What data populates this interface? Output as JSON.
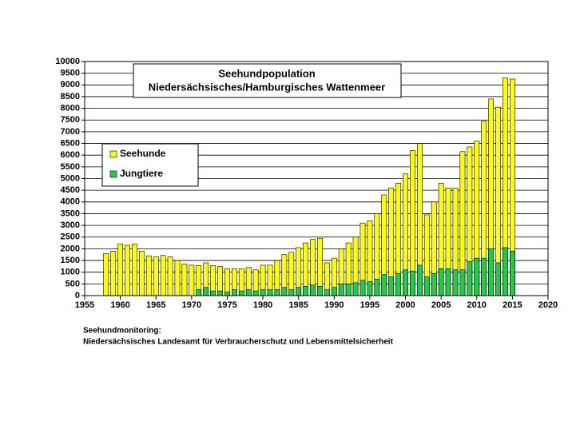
{
  "chart_data": {
    "type": "bar",
    "title": "Seehundpopulation",
    "subtitle": "Niedersächsisches/Hamburgisches Wattenmeer",
    "source": [
      "Seehundmonitoring:",
      "Niedersächsisches  Landesamt für Verbraucherschutz  und Lebensmittelsicherheit"
    ],
    "x": [
      1958,
      1959,
      1960,
      1961,
      1962,
      1963,
      1964,
      1965,
      1966,
      1967,
      1968,
      1969,
      1970,
      1971,
      1972,
      1973,
      1974,
      1975,
      1976,
      1977,
      1978,
      1979,
      1980,
      1981,
      1982,
      1983,
      1984,
      1985,
      1986,
      1987,
      1988,
      1989,
      1990,
      1991,
      1992,
      1993,
      1994,
      1995,
      1996,
      1997,
      1998,
      1999,
      2000,
      2001,
      2002,
      2003,
      2004,
      2005,
      2006,
      2007,
      2008,
      2009,
      2010,
      2011,
      2012,
      2013,
      2014,
      2015
    ],
    "series": [
      {
        "name": "Seehunde",
        "color": "#ffff00",
        "values": [
          1800,
          1900,
          2200,
          2150,
          2200,
          1900,
          1700,
          1650,
          1720,
          1650,
          1500,
          1350,
          1300,
          1280,
          1400,
          1280,
          1250,
          1150,
          1150,
          1150,
          1200,
          1100,
          1300,
          1300,
          1500,
          1750,
          1850,
          2050,
          2250,
          2400,
          2450,
          1400,
          1600,
          2000,
          2250,
          2500,
          3100,
          3200,
          3500,
          4300,
          4600,
          4800,
          5200,
          6200,
          6500,
          3450,
          4000,
          4800,
          4600,
          4600,
          6150,
          6350,
          6600,
          7450,
          8400,
          8050,
          9300,
          9250
        ]
      },
      {
        "name": "Jungtiere",
        "color": "#22cc44",
        "values": [
          null,
          null,
          null,
          null,
          null,
          null,
          null,
          null,
          null,
          null,
          null,
          null,
          null,
          250,
          350,
          200,
          200,
          150,
          250,
          200,
          250,
          200,
          250,
          250,
          250,
          350,
          250,
          350,
          400,
          450,
          400,
          250,
          350,
          500,
          500,
          550,
          650,
          600,
          700,
          900,
          800,
          950,
          1100,
          1050,
          1300,
          800,
          950,
          1150,
          1150,
          1100,
          1100,
          1450,
          1600,
          1600,
          2000,
          1400,
          2050,
          1900
        ]
      }
    ],
    "xlim": [
      1955,
      2020
    ],
    "xticks": [
      1955,
      1960,
      1965,
      1970,
      1975,
      1980,
      1985,
      1990,
      1995,
      2000,
      2005,
      2010,
      2015,
      2020
    ],
    "ylim": [
      0,
      10000
    ],
    "yticks": [
      0,
      500,
      1000,
      1500,
      2000,
      2500,
      3000,
      3500,
      4000,
      4500,
      5000,
      5500,
      6000,
      6500,
      7000,
      7500,
      8000,
      8500,
      9000,
      9500,
      10000
    ],
    "grid": true,
    "legend": "upper left"
  }
}
